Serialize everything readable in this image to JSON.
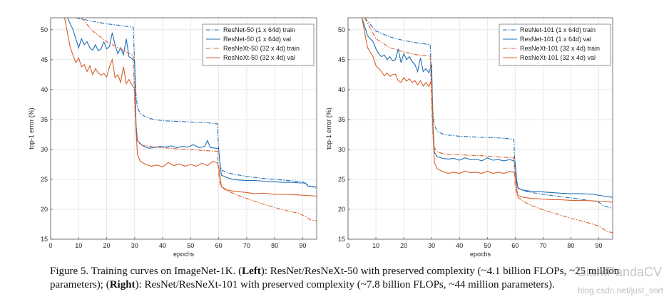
{
  "chart_data": [
    {
      "type": "line",
      "xlabel": "epochs",
      "ylabel": "top-1 error (%)",
      "xlim": [
        0,
        95
      ],
      "ylim": [
        15,
        52
      ],
      "xticks": [
        0,
        10,
        20,
        30,
        40,
        50,
        60,
        70,
        80,
        90
      ],
      "yticks": [
        15,
        20,
        25,
        30,
        35,
        40,
        45,
        50
      ],
      "grid": true,
      "legend_position": "top-right",
      "series": [
        {
          "name": "ResNet-50 (1 x 64d) train",
          "color": "#1f6fb4",
          "style": "dashdot",
          "x": [
            9,
            15,
            20,
            25,
            29.5,
            30,
            30.5,
            31,
            32,
            34,
            36,
            40,
            45,
            50,
            55,
            59.5,
            60,
            60.5,
            61,
            63,
            66,
            70,
            75,
            80,
            85,
            90,
            92,
            95
          ],
          "y": [
            52,
            51.4,
            51,
            50.7,
            50.4,
            44,
            39,
            37,
            36,
            35.4,
            35.1,
            34.8,
            34.7,
            34.6,
            34.5,
            34.3,
            30,
            27.5,
            26.6,
            26.1,
            25.8,
            25.5,
            25.2,
            25,
            24.8,
            24.6,
            24,
            23.5
          ]
        },
        {
          "name": "ResNet-50 (1 x 64d) val",
          "color": "#1f6fb4",
          "style": "solid",
          "x": [
            6,
            8,
            10,
            11,
            12,
            13,
            14,
            15,
            16,
            17,
            18,
            19,
            20,
            21,
            22,
            23,
            24,
            25,
            26,
            27,
            28,
            29,
            30,
            30.5,
            31,
            32,
            33,
            34,
            35,
            37,
            39,
            41,
            43,
            45,
            47,
            49,
            51,
            53,
            55,
            56,
            57,
            59,
            60,
            60.5,
            61,
            63,
            65,
            67,
            70,
            73,
            76,
            80,
            83,
            86,
            89,
            91,
            92,
            95
          ],
          "y": [
            52,
            50,
            47,
            48.5,
            47.5,
            48,
            47,
            46.6,
            47.5,
            46.5,
            46.8,
            48,
            46.8,
            47.2,
            49.5,
            47.5,
            46,
            47,
            45.8,
            48.5,
            45.5,
            45.2,
            44.6,
            34,
            31.5,
            31,
            30.6,
            30.4,
            30.2,
            30.3,
            30.5,
            30.4,
            30.6,
            30.3,
            30.5,
            30.4,
            30.8,
            30.3,
            30.5,
            31.5,
            30.3,
            30.2,
            30.1,
            27.5,
            25.7,
            25.3,
            25,
            24.9,
            24.8,
            24.8,
            24.7,
            24.6,
            24.5,
            24.5,
            24.4,
            24.4,
            23.8,
            23.8
          ]
        },
        {
          "name": "ResNeXt-50 (32 x 4d) train",
          "color": "#d95f2b",
          "style": "dashdot",
          "x": [
            11,
            15,
            20,
            25,
            29.5,
            30,
            30.5,
            31,
            32,
            34,
            36,
            40,
            45,
            50,
            55,
            59.5,
            60,
            60.5,
            61,
            63,
            66,
            70,
            75,
            80,
            85,
            89,
            90,
            91,
            92,
            93,
            95
          ],
          "y": [
            52,
            49.8,
            48,
            46.8,
            45.7,
            38,
            33,
            31.5,
            30.8,
            30.6,
            30.5,
            30.3,
            30.1,
            30,
            29.8,
            29.7,
            26,
            24.3,
            23.7,
            23.1,
            22.5,
            21.8,
            21,
            20.3,
            19.7,
            19.3,
            19,
            18.8,
            18.5,
            18.2,
            18.1
          ]
        },
        {
          "name": "ResNeXt-50 (32 x 4d) val",
          "color": "#d95f2b",
          "style": "solid",
          "x": [
            5,
            7,
            9,
            10,
            11,
            12,
            13,
            14,
            15,
            16,
            17,
            18,
            19,
            20,
            21,
            22,
            23,
            24,
            25,
            26,
            27,
            28,
            29,
            30,
            30.5,
            31,
            32,
            34,
            36,
            38,
            40,
            42,
            44,
            46,
            48,
            50,
            52,
            54,
            56,
            58,
            59.5,
            60,
            60.5,
            61,
            63,
            66,
            70,
            73,
            76,
            80,
            84,
            88,
            92,
            95
          ],
          "y": [
            52,
            47,
            44.5,
            45.3,
            43.8,
            44.2,
            43,
            44,
            42.5,
            43.5,
            42.8,
            42.4,
            42.7,
            42.1,
            43.8,
            45,
            42,
            42.5,
            41.2,
            43.8,
            41,
            41.7,
            40.8,
            40.2,
            33,
            29.2,
            28,
            27.5,
            27.2,
            27.4,
            27.1,
            27.8,
            27.3,
            27.6,
            27.2,
            27.5,
            27.2,
            27.7,
            27.3,
            28,
            27.8,
            27.2,
            25.5,
            23.8,
            23.2,
            23,
            22.8,
            22.6,
            22.7,
            22.5,
            22.5,
            22.4,
            22.3,
            22.2
          ]
        }
      ]
    },
    {
      "type": "line",
      "xlabel": "epochs",
      "ylabel": "top-1 error (%)",
      "xlim": [
        0,
        95
      ],
      "ylim": [
        15,
        52
      ],
      "xticks": [
        0,
        10,
        20,
        30,
        40,
        50,
        60,
        70,
        80,
        90
      ],
      "yticks": [
        15,
        20,
        25,
        30,
        35,
        40,
        45,
        50
      ],
      "grid": true,
      "legend_position": "top-right",
      "series": [
        {
          "name": "ResNet-101 (1 x 64d) train",
          "color": "#1f6fb4",
          "style": "dashdot",
          "x": [
            6,
            10,
            15,
            20,
            25,
            29.5,
            30,
            30.5,
            31,
            32,
            34,
            36,
            40,
            45,
            50,
            55,
            59.5,
            60,
            60.5,
            61,
            63,
            66,
            70,
            75,
            80,
            85,
            90,
            92,
            95
          ],
          "y": [
            52,
            49.8,
            48.8,
            48.2,
            47.8,
            47.5,
            41,
            36,
            34,
            33,
            32.6,
            32.4,
            32.2,
            32.1,
            32,
            31.9,
            31.7,
            26.5,
            24.2,
            23.6,
            23.1,
            22.8,
            22.5,
            22.2,
            21.9,
            21.6,
            21.2,
            20.5,
            20.2
          ]
        },
        {
          "name": "ResNet-101 (1 x 64d) val",
          "color": "#1f6fb4",
          "style": "solid",
          "x": [
            5,
            7,
            9,
            10,
            11,
            12,
            13,
            14,
            15,
            16,
            17,
            18,
            19,
            20,
            21,
            22,
            23,
            24,
            25,
            26,
            27,
            28,
            29,
            30,
            30.5,
            31,
            32,
            34,
            36,
            38,
            40,
            42,
            44,
            46,
            48,
            50,
            52,
            54,
            56,
            58,
            59.5,
            60,
            60.5,
            61,
            63,
            66,
            70,
            73,
            76,
            80,
            84,
            88,
            92,
            95
          ],
          "y": [
            52,
            49,
            48,
            46.8,
            46,
            45.5,
            45.8,
            45,
            45.5,
            44.8,
            45,
            46.8,
            44.5,
            46,
            45,
            45.5,
            44.7,
            44.2,
            43,
            45.3,
            43,
            43.5,
            42.8,
            44.2,
            34,
            29.5,
            28.8,
            28.5,
            28.4,
            28.5,
            28.2,
            28.6,
            28.3,
            28.4,
            28.1,
            28.6,
            28.2,
            28.3,
            28.1,
            28.3,
            28.1,
            27.9,
            25,
            23.5,
            23.2,
            23,
            22.9,
            22.8,
            22.7,
            22.6,
            22.6,
            22.5,
            22.2,
            22
          ]
        },
        {
          "name": "ResNeXt-101 (32 x 4d) train",
          "color": "#d95f2b",
          "style": "dashdot",
          "x": [
            6,
            10,
            15,
            20,
            25,
            29.5,
            30,
            30.5,
            31,
            32,
            34,
            36,
            40,
            45,
            50,
            55,
            59.5,
            60,
            60.5,
            61,
            63,
            66,
            70,
            75,
            80,
            85,
            88,
            90,
            91,
            92,
            93,
            95
          ],
          "y": [
            52,
            48.5,
            47,
            46.3,
            45.8,
            45.6,
            38,
            32,
            30.3,
            29.6,
            29.3,
            29.2,
            29.1,
            29,
            28.9,
            28.7,
            28.6,
            24,
            22.5,
            22,
            21.3,
            20.6,
            19.9,
            19.2,
            18.5,
            17.9,
            17.5,
            17.2,
            16.9,
            16.6,
            16.3,
            16.1
          ]
        },
        {
          "name": "ResNeXt-101 (32 x 4d) val",
          "color": "#d95f2b",
          "style": "solid",
          "x": [
            5,
            7,
            9,
            10,
            11,
            12,
            13,
            14,
            15,
            16,
            17,
            18,
            19,
            20,
            21,
            22,
            23,
            24,
            25,
            26,
            27,
            28,
            29,
            30,
            30.5,
            31,
            32,
            34,
            36,
            38,
            40,
            42,
            44,
            46,
            48,
            50,
            52,
            54,
            56,
            58,
            59.5,
            60,
            60.5,
            61,
            63,
            66,
            70,
            73,
            76,
            80,
            84,
            88,
            92,
            95
          ],
          "y": [
            52,
            47,
            45.5,
            44,
            43.5,
            43,
            42.3,
            42.8,
            42.2,
            42.5,
            42.6,
            41.5,
            41.2,
            42,
            41.4,
            41.8,
            41.2,
            41.5,
            40.8,
            41.5,
            40.6,
            41.2,
            40.5,
            41.6,
            33,
            27.8,
            26.8,
            26.3,
            26,
            26.2,
            26,
            26.4,
            26.1,
            26.2,
            26,
            26.4,
            26,
            26.2,
            26,
            26.3,
            26.2,
            25.8,
            23.5,
            22.3,
            22,
            21.8,
            21.7,
            21.6,
            21.6,
            21.5,
            21.5,
            21.4,
            21.3,
            21.2
          ]
        }
      ]
    }
  ],
  "caption": {
    "prefix": "Figure 5. Training curves on ImageNet-1K. (",
    "left_bold": "Left",
    "left_text": "): ResNet/ResNeXt-50 with preserved complexity (~4.1 billion FLOPs, ~25 million parameters); (",
    "right_bold": "Right",
    "right_text": "): ResNet/ResNeXt-101 with preserved complexity (~7.8 billion FLOPs, ~44 million parameters)."
  },
  "watermark": {
    "brand": "GiantPandaCV",
    "url": "blog.csdn.net/just_sort"
  }
}
